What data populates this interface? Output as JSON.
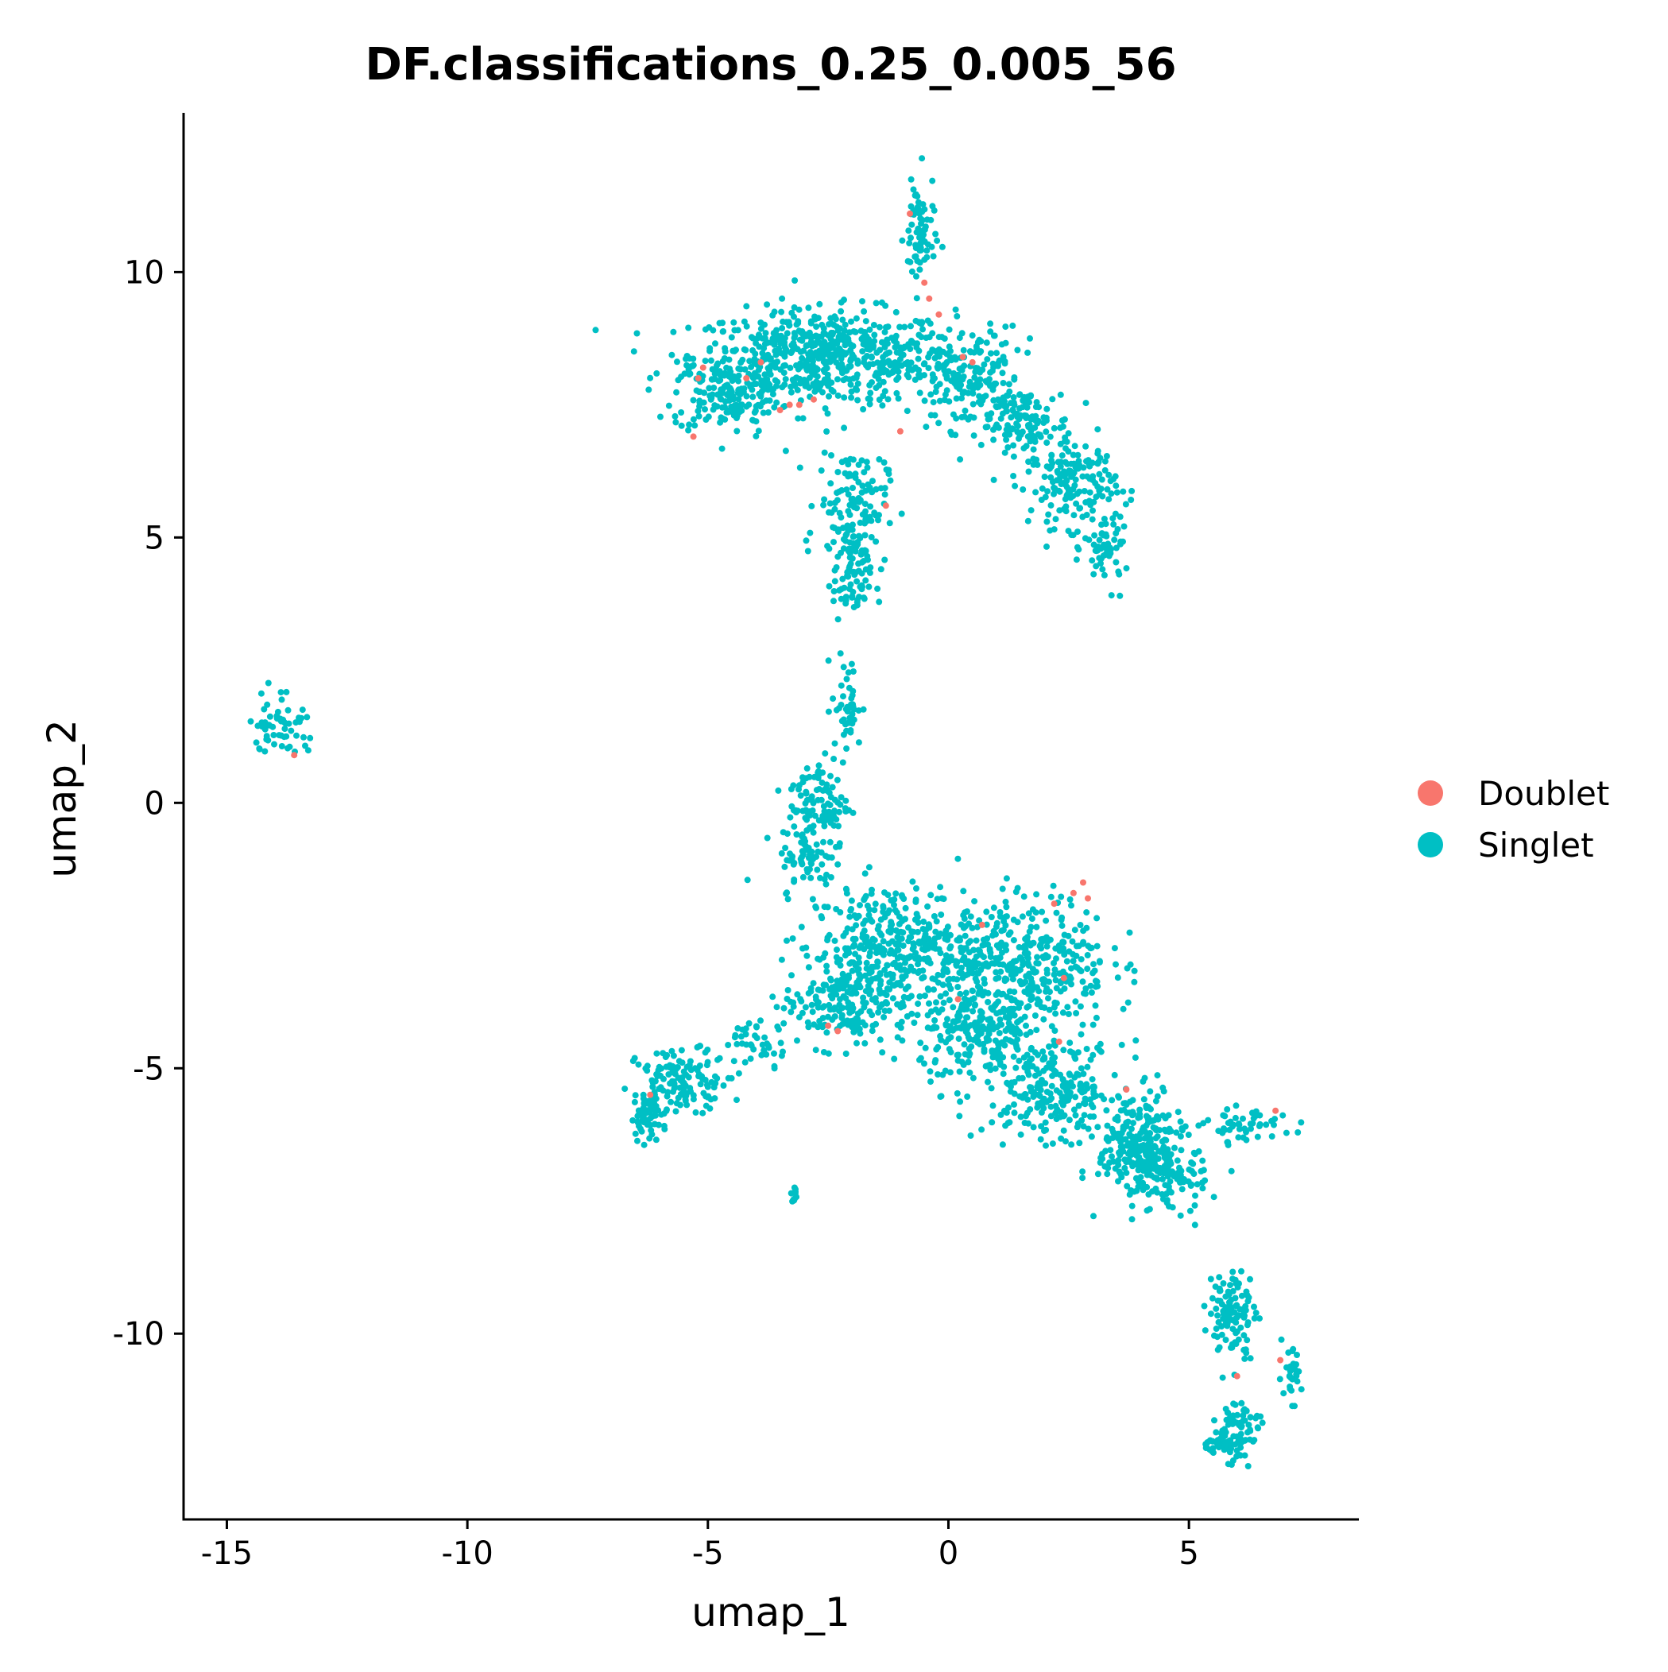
{
  "chart_data": {
    "type": "scatter",
    "title": "DF.classifications_0.25_0.005_56",
    "xlabel": "umap_1",
    "ylabel": "umap_2",
    "xlim": [
      -15.9,
      8.5
    ],
    "ylim": [
      -13.5,
      13
    ],
    "xticks": [
      -15,
      -10,
      -5,
      0,
      5
    ],
    "xtick_labels": [
      "-15",
      "-10",
      "-5",
      "0",
      "5"
    ],
    "yticks": [
      -10,
      -5,
      0,
      5,
      10
    ],
    "ytick_labels": [
      "-10",
      "-5",
      "0",
      "5",
      "10"
    ],
    "grid": false,
    "legend_position": "right",
    "series": [
      {
        "name": "Doublet",
        "color": "#F8766D",
        "points": [
          [
            -0.8,
            11.1
          ],
          [
            -0.5,
            9.8
          ],
          [
            -0.4,
            9.5
          ],
          [
            -0.2,
            9.2
          ],
          [
            0.3,
            8.4
          ],
          [
            0.5,
            8.3
          ],
          [
            -5.2,
            8.0
          ],
          [
            -5.1,
            8.2
          ],
          [
            -4.2,
            8.0
          ],
          [
            -3.9,
            8.3
          ],
          [
            -3.5,
            7.4
          ],
          [
            -3.3,
            7.5
          ],
          [
            -3.1,
            7.5
          ],
          [
            -2.8,
            7.6
          ],
          [
            -5.3,
            6.9
          ],
          [
            -1.0,
            7.0
          ],
          [
            -1.3,
            5.6
          ],
          [
            -2.5,
            -4.2
          ],
          [
            -2.3,
            -4.3
          ],
          [
            0.2,
            -3.7
          ],
          [
            0.7,
            -2.3
          ],
          [
            2.2,
            -1.9
          ],
          [
            2.6,
            -1.7
          ],
          [
            2.8,
            -1.5
          ],
          [
            2.9,
            -1.8
          ],
          [
            2.4,
            -3.3
          ],
          [
            2.3,
            -4.5
          ],
          [
            3.7,
            -5.4
          ],
          [
            -6.2,
            -5.5
          ],
          [
            6.8,
            -5.8
          ],
          [
            6.9,
            -10.5
          ],
          [
            6.0,
            -10.8
          ],
          [
            -13.6,
            0.9
          ]
        ]
      },
      {
        "name": "Singlet",
        "color": "#00BFC4",
        "points": []
      }
    ],
    "singlet_clusters": [
      {
        "cx": -2.6,
        "cy": 8.4,
        "sx": 1.7,
        "sy": 0.55,
        "n": 620
      },
      {
        "cx": -4.6,
        "cy": 7.7,
        "sx": 0.7,
        "sy": 0.45,
        "n": 160
      },
      {
        "cx": 0.4,
        "cy": 8.0,
        "sx": 0.7,
        "sy": 0.6,
        "n": 180
      },
      {
        "cx": 1.6,
        "cy": 7.1,
        "sx": 0.6,
        "sy": 0.45,
        "n": 130
      },
      {
        "cx": 2.6,
        "cy": 6.0,
        "sx": 0.55,
        "sy": 0.5,
        "n": 150
      },
      {
        "cx": 3.3,
        "cy": 4.8,
        "sx": 0.3,
        "sy": 0.45,
        "n": 60
      },
      {
        "cx": -0.6,
        "cy": 10.7,
        "sx": 0.2,
        "sy": 0.7,
        "n": 70
      },
      {
        "cx": -2.0,
        "cy": 5.6,
        "sx": 0.45,
        "sy": 0.7,
        "n": 140
      },
      {
        "cx": -2.0,
        "cy": 4.2,
        "sx": 0.25,
        "sy": 0.5,
        "n": 70
      },
      {
        "cx": -2.1,
        "cy": 1.8,
        "sx": 0.2,
        "sy": 0.6,
        "n": 45
      },
      {
        "cx": -2.7,
        "cy": 0.0,
        "sx": 0.4,
        "sy": 0.55,
        "n": 110
      },
      {
        "cx": -2.9,
        "cy": -1.1,
        "sx": 0.35,
        "sy": 0.35,
        "n": 60
      },
      {
        "cx": -1.2,
        "cy": -2.8,
        "sx": 1.1,
        "sy": 0.8,
        "n": 420
      },
      {
        "cx": -2.3,
        "cy": -3.8,
        "sx": 0.7,
        "sy": 0.5,
        "n": 140
      },
      {
        "cx": 1.6,
        "cy": -3.0,
        "sx": 1.1,
        "sy": 0.8,
        "n": 380
      },
      {
        "cx": 0.7,
        "cy": -4.4,
        "sx": 0.8,
        "sy": 0.6,
        "n": 220
      },
      {
        "cx": 2.2,
        "cy": -5.4,
        "sx": 0.9,
        "sy": 0.55,
        "n": 230
      },
      {
        "cx": 4.0,
        "cy": -6.5,
        "sx": 0.55,
        "sy": 0.6,
        "n": 260
      },
      {
        "cx": 4.6,
        "cy": -7.1,
        "sx": 0.5,
        "sy": 0.35,
        "n": 80
      },
      {
        "cx": 6.2,
        "cy": -6.1,
        "sx": 0.55,
        "sy": 0.2,
        "n": 50
      },
      {
        "cx": -5.5,
        "cy": -5.2,
        "sx": 0.6,
        "sy": 0.35,
        "n": 130
      },
      {
        "cx": -6.2,
        "cy": -5.9,
        "sx": 0.25,
        "sy": 0.25,
        "n": 60
      },
      {
        "cx": -3.9,
        "cy": -4.5,
        "sx": 0.5,
        "sy": 0.25,
        "n": 40
      },
      {
        "cx": -13.9,
        "cy": 1.5,
        "sx": 0.35,
        "sy": 0.4,
        "n": 60
      },
      {
        "cx": -3.2,
        "cy": -7.4,
        "sx": 0.05,
        "sy": 0.15,
        "n": 10
      },
      {
        "cx": 5.9,
        "cy": -9.6,
        "sx": 0.3,
        "sy": 0.5,
        "n": 110
      },
      {
        "cx": 6.0,
        "cy": -11.8,
        "sx": 0.3,
        "sy": 0.4,
        "n": 80
      },
      {
        "cx": 5.6,
        "cy": -12.1,
        "sx": 0.25,
        "sy": 0.1,
        "n": 30
      },
      {
        "cx": 7.1,
        "cy": -10.8,
        "sx": 0.15,
        "sy": 0.3,
        "n": 30
      }
    ]
  }
}
